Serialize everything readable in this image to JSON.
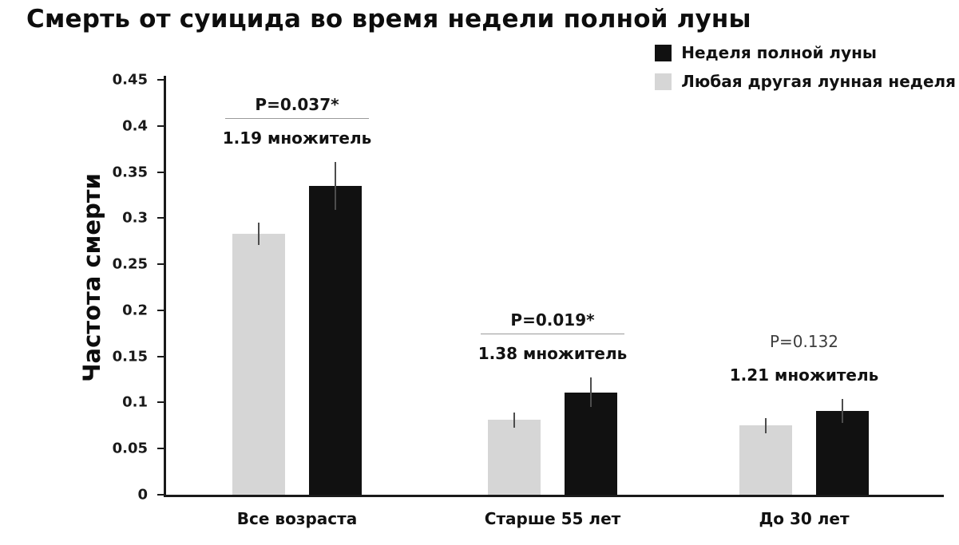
{
  "title": "Смерть от суицида во время недели полной луны",
  "background_color": "#ffffff",
  "chart_data": {
    "type": "bar",
    "title": "Смерть от суицида во время недели полной луны",
    "xlabel": "",
    "ylabel": "Частота смерти",
    "ylim": [
      0,
      0.45
    ],
    "yticks": [
      0,
      0.05,
      0.1,
      0.15,
      0.2,
      0.25,
      0.3,
      0.35,
      0.4,
      0.45
    ],
    "ytick_labels": [
      "0",
      "0.05",
      "0.1",
      "0.15",
      "0.2",
      "0.25",
      "0.3",
      "0.35",
      "0.4",
      "0.45"
    ],
    "grid": false,
    "categories": [
      "Все возраста",
      "Старше 55 лет",
      "До 30 лет"
    ],
    "series": [
      {
        "name": "Любая другая лунная неделя",
        "color": "#d6d6d6",
        "values": [
          0.283,
          0.081,
          0.075
        ],
        "errors": [
          0.012,
          0.008,
          0.008
        ]
      },
      {
        "name": "Неделя полной луны",
        "color": "#111111",
        "values": [
          0.335,
          0.111,
          0.091
        ],
        "errors": [
          0.026,
          0.016,
          0.013
        ]
      }
    ],
    "annotations": [
      {
        "p_label": "P=0.037*",
        "multiplier_label": "1.19 множитель",
        "underlined": true
      },
      {
        "p_label": "P=0.019*",
        "multiplier_label": "1.38 множитель",
        "underlined": true
      },
      {
        "p_label": "P=0.132",
        "multiplier_label": "1.21 множитель",
        "underlined": false
      }
    ],
    "legend_position": "top-right",
    "legend": [
      {
        "label": "Неделя полной луны",
        "color": "#111111"
      },
      {
        "label": "Любая другая лунная неделя",
        "color": "#d6d6d6"
      }
    ]
  }
}
